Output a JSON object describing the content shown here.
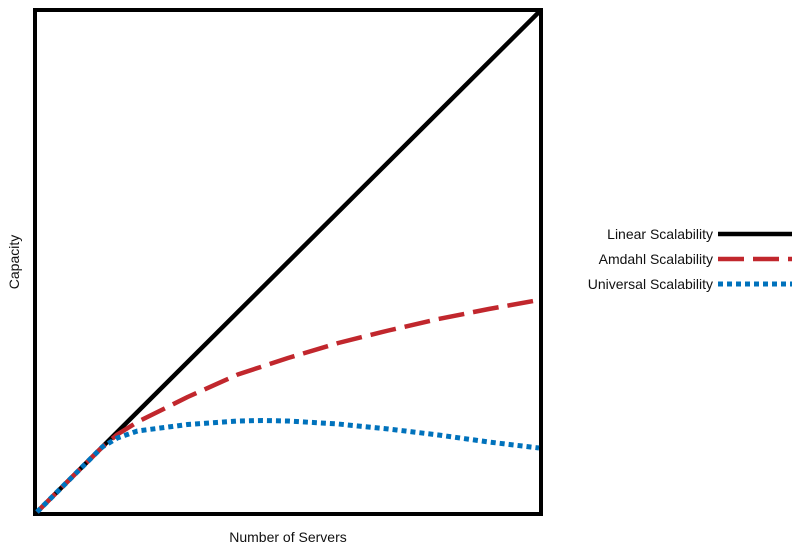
{
  "chart_data": {
    "type": "line",
    "xlabel": "Number of Servers",
    "ylabel": "Capacity",
    "xlim": [
      0,
      100
    ],
    "ylim": [
      0,
      100
    ],
    "grid": false,
    "ticks": false,
    "legend_position": "right",
    "series": [
      {
        "name": "Linear Scalability",
        "color": "#000000",
        "style": "solid",
        "x": [
          0,
          100
        ],
        "y": [
          0,
          100
        ]
      },
      {
        "name": "Amdahl Scalability",
        "color": "#c1272d",
        "style": "dashed",
        "x": [
          0,
          5,
          10,
          13,
          16,
          20,
          30,
          40,
          50,
          60,
          70,
          80,
          90,
          100
        ],
        "y": [
          0,
          5,
          10,
          13,
          15.5,
          18,
          23,
          27.5,
          30.8,
          33.8,
          36.3,
          38.6,
          40.6,
          42.4
        ]
      },
      {
        "name": "Universal Scalability",
        "color": "#0072bc",
        "style": "dotted",
        "x": [
          0,
          5,
          10,
          13,
          16,
          20,
          30,
          40,
          45,
          50,
          60,
          70,
          80,
          90,
          100
        ],
        "y": [
          0,
          5,
          10,
          13,
          14.8,
          16.2,
          17.5,
          18.2,
          18.3,
          18.2,
          17.6,
          16.6,
          15.4,
          14.0,
          12.8
        ]
      }
    ]
  }
}
